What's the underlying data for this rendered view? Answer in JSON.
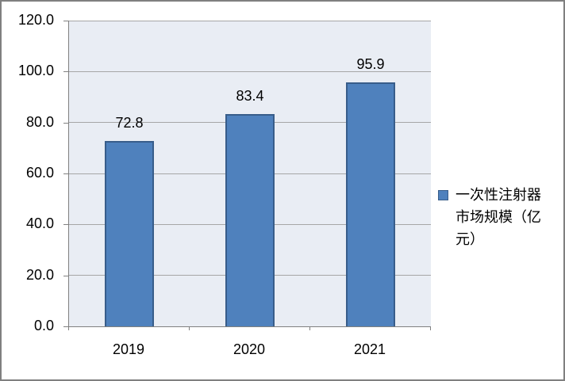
{
  "chart_data": {
    "type": "bar",
    "categories": [
      "2019",
      "2020",
      "2021"
    ],
    "series": [
      {
        "name": "一次性注射器市场规模（亿元）",
        "values": [
          72.8,
          83.4,
          95.9
        ]
      }
    ],
    "data_labels": [
      "72.8",
      "83.4",
      "95.9"
    ],
    "title": "",
    "xlabel": "",
    "ylabel": "",
    "ylim": [
      0,
      120
    ],
    "ytick_step": 20,
    "ytick_labels": [
      "0.0",
      "20.0",
      "40.0",
      "60.0",
      "80.0",
      "100.0",
      "120.0"
    ],
    "grid": true,
    "legend_position": "right",
    "legend_label": "一次性注射器市场规模（亿元）",
    "colors": {
      "bar_fill": "#4F81BD",
      "bar_border": "#385D8A",
      "plot_background": "#E9EDF4",
      "gridline": "#A6A6A6",
      "axis": "#808080",
      "outer_border": "#808080",
      "text": "#000000",
      "canvas_background": "#FFFFFF"
    }
  }
}
